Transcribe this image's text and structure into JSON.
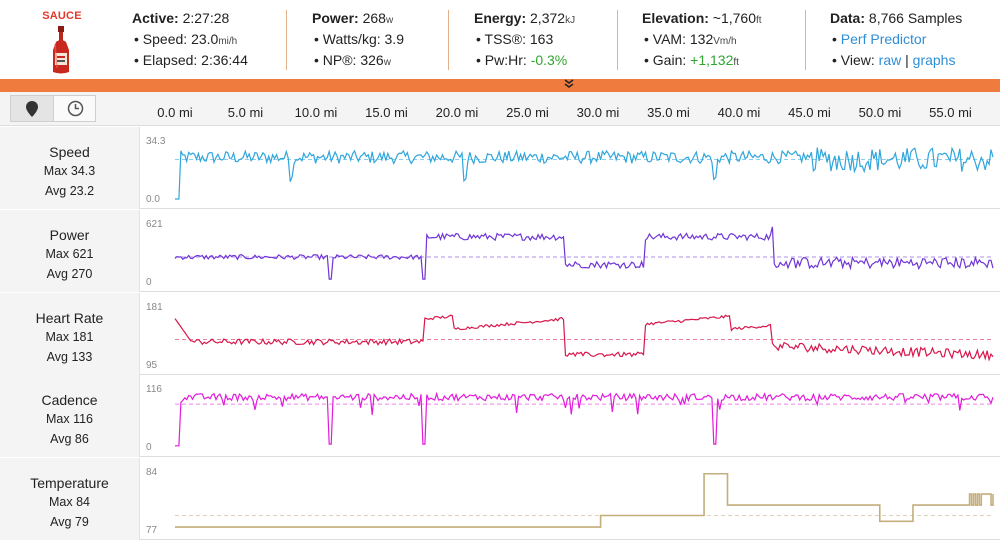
{
  "logo": {
    "text": "SAUCE",
    "icon": "sauce-bottle-icon"
  },
  "header": {
    "groups": [
      {
        "title_label": "Active:",
        "title_value": "2:27:28",
        "title_unit": "",
        "rows": [
          {
            "label": "Speed:",
            "value": "23.0",
            "unit": "mi/h",
            "style": ""
          },
          {
            "label": "Elapsed:",
            "value": "2:36:44",
            "unit": "",
            "style": ""
          }
        ]
      },
      {
        "title_label": "Power:",
        "title_value": "268",
        "title_unit": "w",
        "rows": [
          {
            "label": "Watts/kg:",
            "value": "3.9",
            "unit": "",
            "style": ""
          },
          {
            "label": "NP®:",
            "value": "326",
            "unit": "w",
            "style": ""
          }
        ]
      },
      {
        "title_label": "Energy:",
        "title_value": "2,372",
        "title_unit": "kJ",
        "rows": [
          {
            "label": "TSS®:",
            "value": "163",
            "unit": "",
            "style": ""
          },
          {
            "label": "Pw:Hr:",
            "value": "-0.3%",
            "unit": "",
            "style": "pos"
          }
        ]
      },
      {
        "title_label": "Elevation:",
        "title_value": "~1,760",
        "title_unit": "ft",
        "rows": [
          {
            "label": "VAM:",
            "value": "132",
            "unit": "Vm/h",
            "style": ""
          },
          {
            "label": "Gain:",
            "value": "+1,132",
            "unit": "ft",
            "style": "pos"
          }
        ]
      }
    ],
    "data_group": {
      "title_label": "Data:",
      "title_value": "8,766 Samples",
      "perf_link": "Perf Predictor",
      "view_label": "View:",
      "view_raw": "raw",
      "view_sep": "|",
      "view_graphs": "graphs"
    }
  },
  "axis": {
    "ticks": [
      "0.0 mi",
      "5.0 mi",
      "10.0 mi",
      "15.0 mi",
      "20.0 mi",
      "25.0 mi",
      "30.0 mi",
      "35.0 mi",
      "40.0 mi",
      "45.0 mi",
      "50.0 mi",
      "55.0 mi"
    ],
    "buttons": {
      "distance_icon": "map-pin-icon",
      "time_icon": "clock-icon"
    }
  },
  "graphs": [
    {
      "name": "Speed",
      "max": "Max 34.3",
      "avg": "Avg 23.2",
      "ymax_label": "34.3",
      "ymin_label": "0.0",
      "color": "#2fa6dc",
      "avg_norm": 0.68
    },
    {
      "name": "Power",
      "max": "Max 621",
      "avg": "Avg 270",
      "ymax_label": "621",
      "ymin_label": "0",
      "color": "#6f35d6",
      "avg_norm": 0.43
    },
    {
      "name": "Heart Rate",
      "max": "Max 181",
      "avg": "Avg 133",
      "ymax_label": "181",
      "ymin_label": "95",
      "color": "#d8174c",
      "avg_norm": 0.44
    },
    {
      "name": "Cadence",
      "max": "Max 116",
      "avg": "Avg 86",
      "ymax_label": "116",
      "ymin_label": "0",
      "color": "#e21bdc",
      "avg_norm": 0.74
    },
    {
      "name": "Temperature",
      "max": "Max 84",
      "avg": "Avg 79",
      "ymax_label": "84",
      "ymin_label": "77",
      "color": "#c3ae7c",
      "avg_norm": 0.25
    }
  ]
}
